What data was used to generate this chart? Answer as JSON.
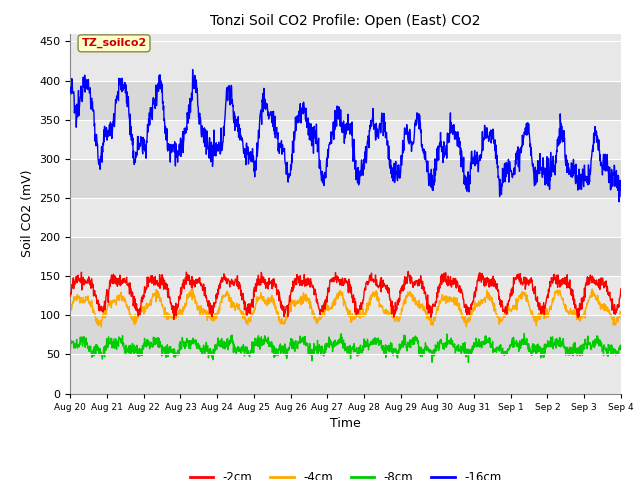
{
  "title": "Tonzi Soil CO2 Profile: Open (East) CO2",
  "ylabel": "Soil CO2 (mV)",
  "xlabel": "Time",
  "ylim": [
    0,
    460
  ],
  "yticks": [
    0,
    50,
    100,
    150,
    200,
    250,
    300,
    350,
    400,
    450
  ],
  "fig_bg_color": "#ffffff",
  "plot_bg_color": "#e8e8e8",
  "legend_labels": [
    "-2cm",
    "-4cm",
    "-8cm",
    "-16cm"
  ],
  "legend_colors": [
    "#ff0000",
    "#ffaa00",
    "#00cc00",
    "#0000ff"
  ],
  "annotation_text": "TZ_soilco2",
  "annotation_bg": "#ffffcc",
  "annotation_color": "#cc0000",
  "days": [
    "Aug 20",
    "Aug 21",
    "Aug 22",
    "Aug 23",
    "Aug 24",
    "Aug 25",
    "Aug 26",
    "Aug 27",
    "Aug 28",
    "Aug 29",
    "Aug 30",
    "Aug 31",
    "Sep 1",
    "Sep 2",
    "Sep 3",
    "Sep 4"
  ],
  "grid_color": "#ffffff",
  "band_colors": [
    "#e8e8e8",
    "#d8d8d8"
  ]
}
